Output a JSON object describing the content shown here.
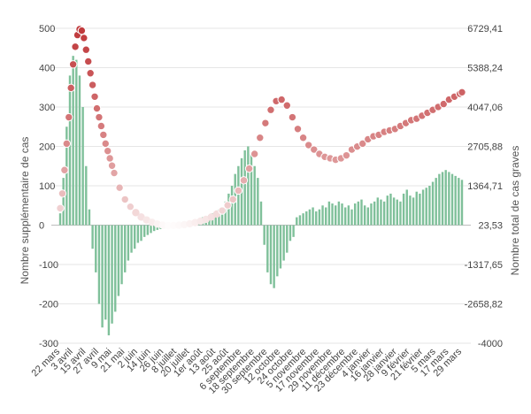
{
  "chart_data": {
    "type": "bar+scatter",
    "title": "",
    "ylabel_left": "Nombre supplémentaire de cas",
    "ylabel_right": "Nombre total de cas graves",
    "left_ticks": [
      500,
      400,
      300,
      200,
      100,
      0,
      -100,
      -200,
      -300
    ],
    "right_ticks": [
      "6729,41",
      "5388,24",
      "4047,06",
      "2705,88",
      "1364,71",
      "23,53",
      "-1317,65",
      "-2658,82",
      "-4000"
    ],
    "ylim_left": [
      -300,
      500
    ],
    "ylim_right": [
      -4000,
      6729.41
    ],
    "grid": true,
    "x_tick_labels": [
      "22 mars",
      "3 avril",
      "15 avril",
      "27 avril",
      "9 mai",
      "21 mai",
      "2 juin",
      "14 juin",
      "26 juin",
      "8 juillet",
      "20 juillet",
      "1er août",
      "13 août",
      "25 août",
      "6 septembre",
      "18 septembre",
      "30 septembre",
      "12 octobre",
      "24 octobre",
      "5 novembre",
      "17 novembre",
      "29 novembre",
      "11 décembre",
      "23 décembre",
      "4 janvier",
      "16 janvier",
      "28 janvier",
      "9 février",
      "21 février",
      "5 mars",
      "17 mars",
      "29 mars"
    ],
    "series": [
      {
        "kind": "bar",
        "axis": "left",
        "color": "#7fc09a",
        "x_days": [
          0,
          3,
          6,
          9,
          12,
          15,
          18,
          21,
          24,
          27,
          30,
          33,
          36,
          39,
          42,
          45,
          48,
          51,
          54,
          57,
          60,
          63,
          66,
          69,
          72,
          75,
          78,
          81,
          84,
          87,
          90,
          93,
          96,
          99,
          102,
          105,
          108,
          111,
          114,
          117,
          120,
          123,
          126,
          129,
          132,
          135,
          138,
          141,
          144,
          147,
          150,
          153,
          156,
          159,
          162,
          165,
          168,
          171,
          174,
          177,
          180,
          183,
          186,
          189,
          192,
          195,
          198,
          201,
          204,
          207,
          210,
          213,
          216,
          219,
          222,
          225,
          228,
          231,
          234,
          237,
          240,
          243,
          246,
          249,
          252,
          255,
          258,
          261,
          264,
          267,
          270,
          273,
          276,
          279,
          282,
          285,
          288,
          291,
          294,
          297,
          300,
          303,
          306,
          309,
          312,
          315,
          318,
          321,
          324,
          327,
          330,
          333,
          336,
          339,
          342,
          345,
          348,
          351,
          354,
          357,
          360,
          363,
          366,
          369,
          372
        ],
        "values": [
          30,
          120,
          250,
          380,
          430,
          420,
          380,
          300,
          150,
          40,
          -60,
          -120,
          -200,
          -260,
          -240,
          -280,
          -250,
          -220,
          -180,
          -150,
          -120,
          -90,
          -70,
          -60,
          -45,
          -40,
          -30,
          -25,
          -20,
          -15,
          -12,
          -10,
          -8,
          -6,
          -5,
          -4,
          -3,
          -5,
          -4,
          5,
          8,
          10,
          12,
          15,
          20,
          22,
          25,
          30,
          35,
          40,
          45,
          60,
          80,
          100,
          130,
          150,
          170,
          190,
          200,
          180,
          150,
          120,
          60,
          -50,
          -120,
          -150,
          -160,
          -130,
          -110,
          -90,
          -70,
          -40,
          -30,
          20,
          25,
          30,
          35,
          40,
          45,
          35,
          40,
          50,
          45,
          60,
          55,
          50,
          60,
          55,
          45,
          50,
          40,
          55,
          60,
          65,
          50,
          45,
          55,
          60,
          70,
          65,
          60,
          75,
          80,
          70,
          65,
          60,
          80,
          90,
          75,
          70,
          85,
          80,
          90,
          95,
          100,
          110,
          120,
          130,
          135,
          140,
          135,
          130,
          125,
          120,
          115
        ]
      },
      {
        "kind": "scatter",
        "axis": "right",
        "color_start": "#ffffff",
        "color_end": "#c0393b",
        "x_days": [
          0,
          2,
          4,
          6,
          8,
          10,
          12,
          14,
          16,
          18,
          20,
          22,
          24,
          26,
          28,
          30,
          32,
          34,
          36,
          38,
          40,
          42,
          44,
          46,
          48,
          50,
          55,
          60,
          65,
          70,
          75,
          80,
          85,
          90,
          95,
          100,
          105,
          110,
          115,
          120,
          125,
          130,
          135,
          140,
          145,
          150,
          155,
          160,
          165,
          170,
          175,
          180,
          185,
          190,
          195,
          200,
          205,
          210,
          215,
          220,
          225,
          230,
          235,
          240,
          245,
          250,
          255,
          260,
          265,
          270,
          275,
          280,
          285,
          290,
          295,
          300,
          305,
          310,
          315,
          320,
          325,
          330,
          335,
          340,
          345,
          350,
          355,
          360,
          365,
          370,
          372
        ],
        "values": [
          600,
          1100,
          1900,
          2800,
          3700,
          4700,
          5500,
          6100,
          6500,
          6700,
          6650,
          6400,
          6000,
          5600,
          5200,
          4800,
          4400,
          4000,
          3700,
          3400,
          3100,
          2800,
          2550,
          2300,
          2050,
          1800,
          1300,
          900,
          650,
          450,
          300,
          200,
          120,
          60,
          20,
          5,
          10,
          20,
          40,
          70,
          110,
          160,
          220,
          300,
          400,
          520,
          700,
          900,
          1200,
          1550,
          1950,
          2450,
          3000,
          3500,
          3950,
          4250,
          4300,
          4100,
          3700,
          3300,
          3000,
          2750,
          2600,
          2450,
          2350,
          2300,
          2250,
          2300,
          2400,
          2600,
          2700,
          2800,
          2950,
          3050,
          3100,
          3200,
          3250,
          3300,
          3400,
          3500,
          3600,
          3650,
          3750,
          3850,
          3950,
          4050,
          4150,
          4300,
          4400,
          4500,
          4550
        ]
      }
    ]
  }
}
